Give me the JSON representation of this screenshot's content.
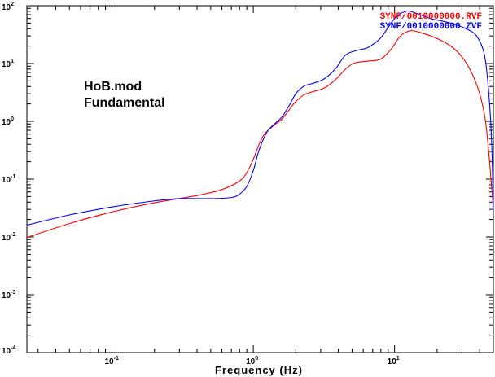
{
  "chart_data": {
    "type": "line",
    "title": "",
    "xlabel": "Frequency (Hz)",
    "ylabel": "",
    "xscale": "log",
    "yscale": "log",
    "xlim": [
      0.025,
      50
    ],
    "ylim": [
      0.0001,
      100
    ],
    "grid": false,
    "legend_position": "top-right",
    "annotation": [
      "HoB.mod",
      "Fundamental"
    ],
    "x_ticks": [
      {
        "base": "10",
        "exp": "-1",
        "value": 0.1
      },
      {
        "base": "10",
        "exp": "0",
        "value": 1
      },
      {
        "base": "10",
        "exp": "1",
        "value": 10
      }
    ],
    "y_ticks": [
      {
        "base": "10",
        "exp": "-4",
        "value": 0.0001
      },
      {
        "base": "10",
        "exp": "-3",
        "value": 0.001
      },
      {
        "base": "10",
        "exp": "-2",
        "value": 0.01
      },
      {
        "base": "10",
        "exp": "-1",
        "value": 0.1
      },
      {
        "base": "10",
        "exp": "0",
        "value": 1
      },
      {
        "base": "10",
        "exp": "1",
        "value": 10
      },
      {
        "base": "10",
        "exp": "2",
        "value": 100
      }
    ],
    "series": [
      {
        "name": "SYNF/0010000000.RVF",
        "color": "#ff0000",
        "points": [
          [
            0.025,
            0.0098
          ],
          [
            0.05,
            0.017
          ],
          [
            0.1,
            0.027
          ],
          [
            0.2,
            0.039
          ],
          [
            0.4,
            0.052
          ],
          [
            0.6,
            0.066
          ],
          [
            0.8,
            0.093
          ],
          [
            0.9,
            0.13
          ],
          [
            1.0,
            0.22
          ],
          [
            1.1,
            0.4
          ],
          [
            1.2,
            0.6
          ],
          [
            1.4,
            0.85
          ],
          [
            1.6,
            1.1
          ],
          [
            1.8,
            1.6
          ],
          [
            2.0,
            2.2
          ],
          [
            2.3,
            2.9
          ],
          [
            2.7,
            3.3
          ],
          [
            3.2,
            3.8
          ],
          [
            3.8,
            5.2
          ],
          [
            4.5,
            8.0
          ],
          [
            5.2,
            10.2
          ],
          [
            6.5,
            11.0
          ],
          [
            8.0,
            12.0
          ],
          [
            9.5,
            18.0
          ],
          [
            11.0,
            30.0
          ],
          [
            13.0,
            37.0
          ],
          [
            16.0,
            33.0
          ],
          [
            20.0,
            27.0
          ],
          [
            25.0,
            20.0
          ],
          [
            30.0,
            13.0
          ],
          [
            35.0,
            7.0
          ],
          [
            40.0,
            3.0
          ],
          [
            44.0,
            1.0
          ],
          [
            47.0,
            0.2
          ],
          [
            50.0,
            0.03
          ]
        ]
      },
      {
        "name": "SYNF/0010000000.ZVF",
        "color": "#0000ff",
        "points": [
          [
            0.025,
            0.016
          ],
          [
            0.05,
            0.024
          ],
          [
            0.1,
            0.033
          ],
          [
            0.2,
            0.042
          ],
          [
            0.3,
            0.046
          ],
          [
            0.5,
            0.046
          ],
          [
            0.7,
            0.048
          ],
          [
            0.8,
            0.055
          ],
          [
            0.9,
            0.075
          ],
          [
            1.0,
            0.14
          ],
          [
            1.1,
            0.32
          ],
          [
            1.25,
            0.65
          ],
          [
            1.4,
            0.88
          ],
          [
            1.6,
            1.2
          ],
          [
            1.8,
            1.9
          ],
          [
            2.0,
            3.0
          ],
          [
            2.3,
            4.1
          ],
          [
            2.7,
            4.6
          ],
          [
            3.2,
            5.5
          ],
          [
            3.8,
            8.0
          ],
          [
            4.5,
            14.0
          ],
          [
            5.5,
            17.0
          ],
          [
            6.5,
            19.0
          ],
          [
            8.0,
            28.0
          ],
          [
            10.0,
            60.0
          ],
          [
            12.0,
            80.0
          ],
          [
            14.0,
            75.0
          ],
          [
            18.0,
            60.0
          ],
          [
            25.0,
            50.0
          ],
          [
            32.0,
            40.0
          ],
          [
            38.0,
            30.0
          ],
          [
            43.0,
            15.0
          ],
          [
            46.0,
            4.0
          ],
          [
            48.5,
            0.5
          ],
          [
            50.0,
            0.03
          ]
        ]
      }
    ]
  }
}
